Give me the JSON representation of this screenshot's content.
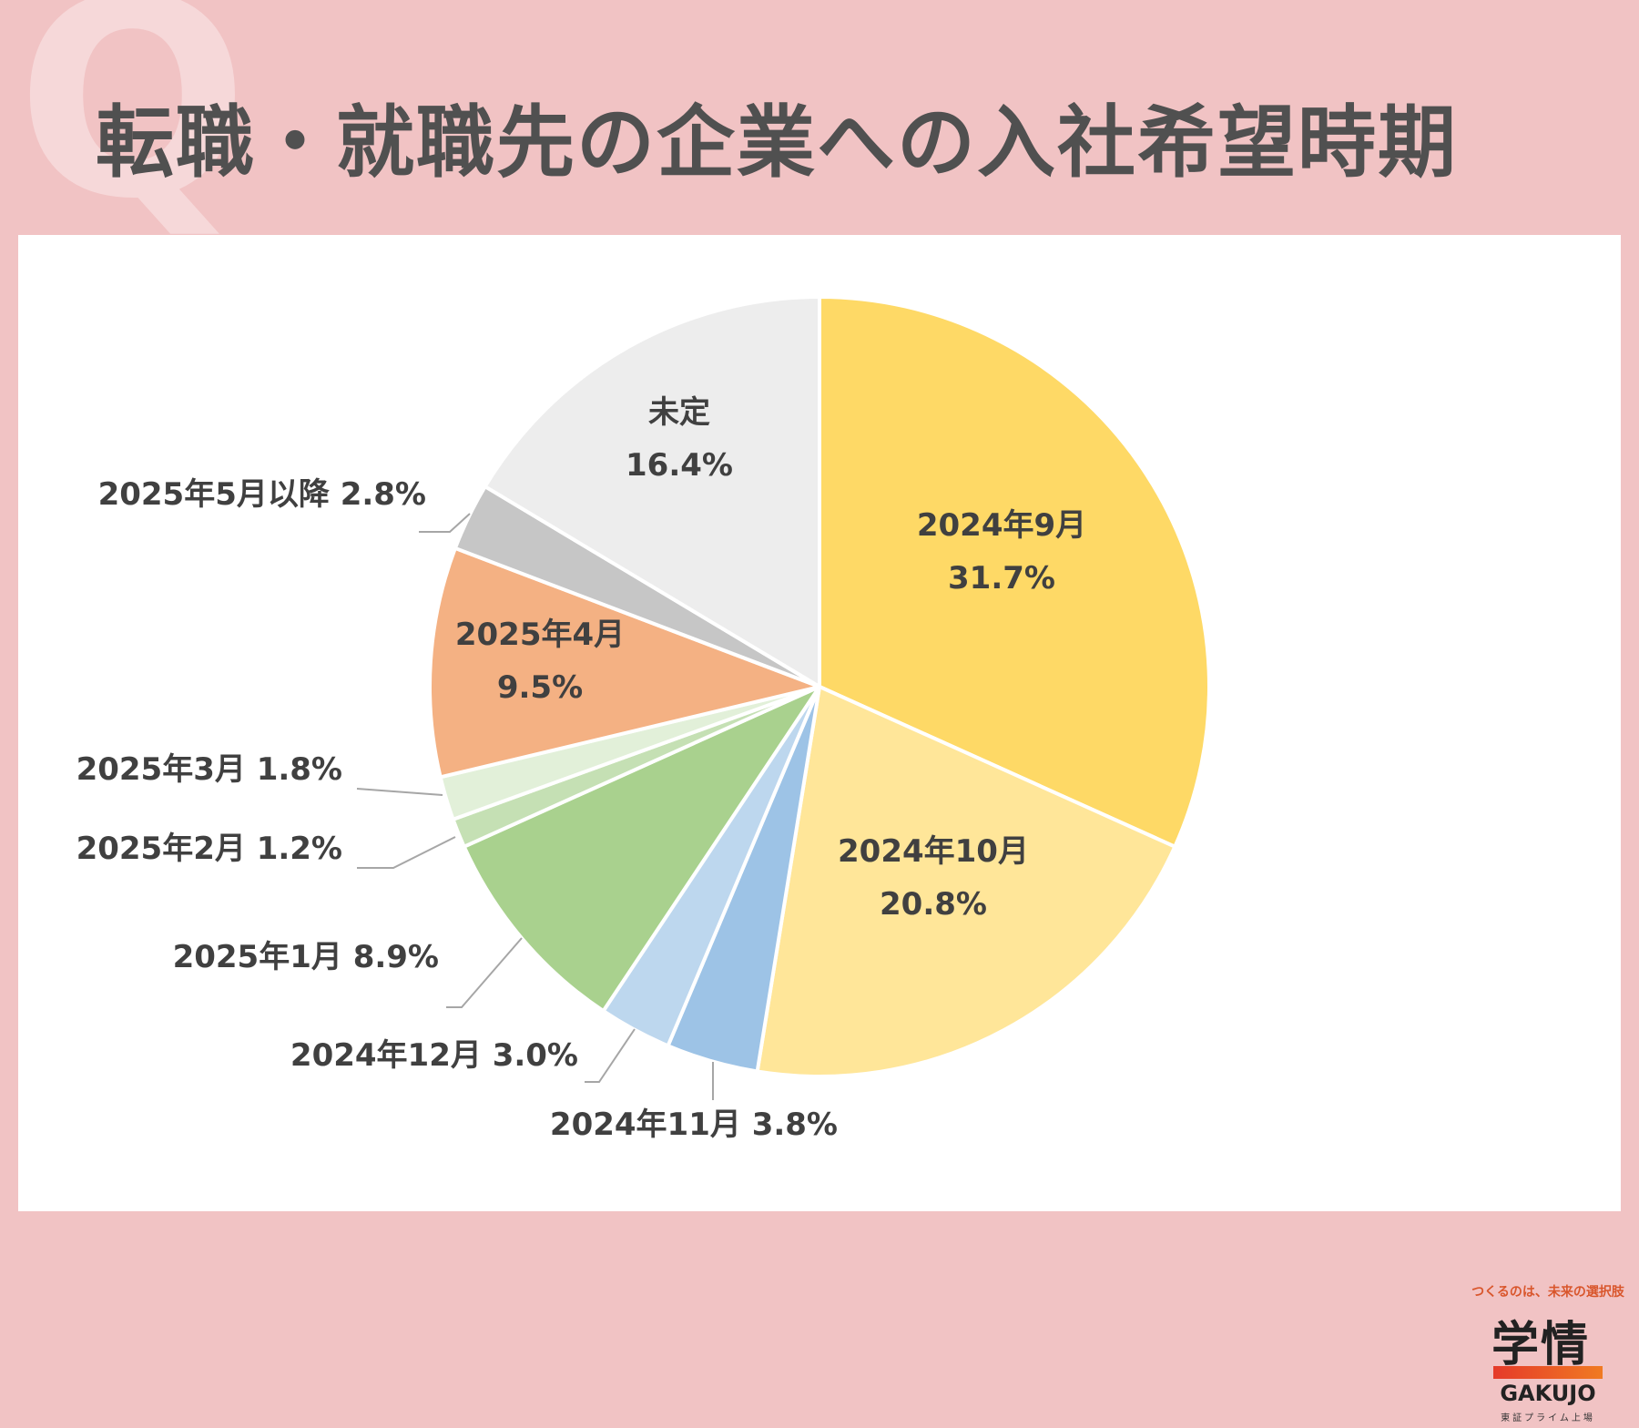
{
  "header": {
    "q_mark": "Q",
    "title": "転職・就職先の企業への入社希望時期"
  },
  "chart_data": {
    "type": "pie",
    "title": "転職・就職先の企業への入社希望時期",
    "start": "top, clockwise",
    "slices": [
      {
        "label": "2024年9月",
        "value": 31.7,
        "value_text": "31.7%",
        "color": "#fed966",
        "label_mode": "inside",
        "label_color": "#404040"
      },
      {
        "label": "2024年10月",
        "value": 20.8,
        "value_text": "20.8%",
        "color": "#ffe699",
        "label_mode": "inside",
        "label_color": "#404040"
      },
      {
        "label": "2024年11月",
        "value": 3.8,
        "value_text": "3.8%",
        "color": "#9dc3e6",
        "label_mode": "outside",
        "label_color": "#404040"
      },
      {
        "label": "2024年12月",
        "value": 3.0,
        "value_text": "3.0%",
        "color": "#bdd7ee",
        "label_mode": "outside",
        "label_color": "#404040"
      },
      {
        "label": "2025年1月",
        "value": 8.9,
        "value_text": "8.9%",
        "color": "#a9d18e",
        "label_mode": "outside",
        "label_color": "#404040"
      },
      {
        "label": "2025年2月",
        "value": 1.2,
        "value_text": "1.2%",
        "color": "#c5e0b4",
        "label_mode": "outside",
        "label_color": "#404040"
      },
      {
        "label": "2025年3月",
        "value": 1.8,
        "value_text": "1.8%",
        "color": "#e2f0d9",
        "label_mode": "outside",
        "label_color": "#404040"
      },
      {
        "label": "2025年4月",
        "value": 9.5,
        "value_text": "9.5%",
        "color": "#f4b183",
        "label_mode": "inside",
        "label_color": "#404040"
      },
      {
        "label": "2025年5月以降",
        "value": 2.8,
        "value_text": "2.8%",
        "color": "#c6c6c6",
        "label_mode": "outside",
        "label_color": "#404040"
      },
      {
        "label": "未定",
        "value": 16.4,
        "value_text": "16.4%",
        "color": "#ededed",
        "label_mode": "inside",
        "label_color": "#404040"
      }
    ]
  },
  "logo": {
    "tagline": "つくるのは、未来の選択肢",
    "name": "学情",
    "roman": "GAKUJO",
    "sub": "東証プライム上場"
  }
}
